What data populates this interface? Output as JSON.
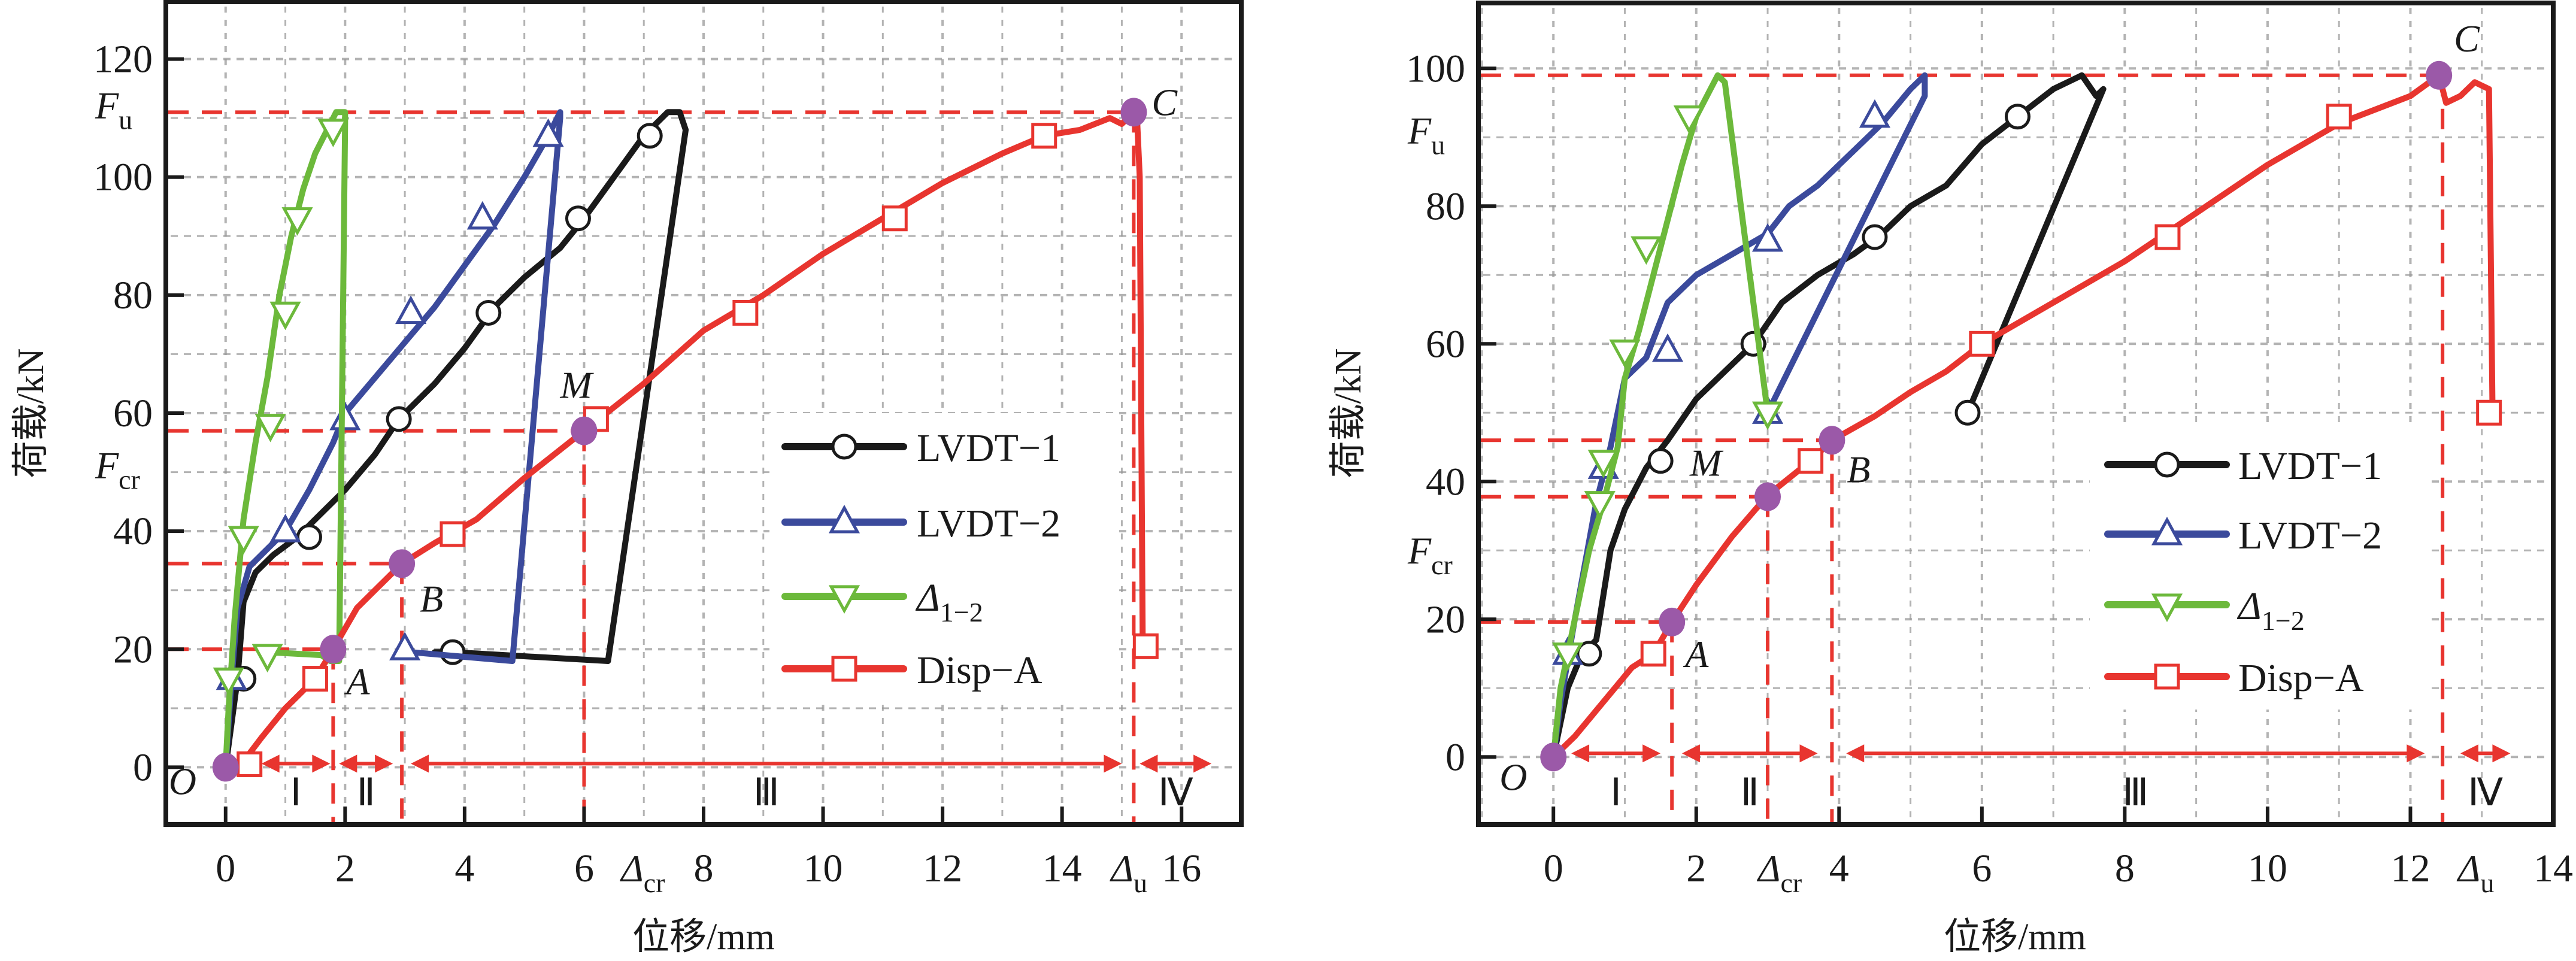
{
  "colors": {
    "LVDT-1": "#1a1a1a",
    "LVDT-2": "#3b4a9c",
    "delta12": "#6cb93b",
    "Disp-A": "#e8352f",
    "key_point": "#9b59a8",
    "grid": "#9a9a9a",
    "guide": "#e8352f"
  },
  "chart_data": [
    {
      "type": "line",
      "panel": "left",
      "xlabel": "位移/mm",
      "ylabel": "荷载/kN",
      "xlim": [
        -1.0,
        17.0
      ],
      "ylim": [
        -9.7,
        129.7
      ],
      "grid": true,
      "xticks": [
        {
          "value": 0,
          "label": "0"
        },
        {
          "value": 2,
          "label": "2"
        },
        {
          "value": 4,
          "label": "4"
        },
        {
          "value": 6,
          "label": "6"
        },
        {
          "value": 8,
          "label": "8"
        },
        {
          "value": 10,
          "label": "10"
        },
        {
          "value": 12,
          "label": "12"
        },
        {
          "value": 14,
          "label": "14"
        },
        {
          "value": 16,
          "label": "16"
        }
      ],
      "yticks": [
        {
          "value": 0,
          "label": "0"
        },
        {
          "value": 20,
          "label": "20"
        },
        {
          "value": 40,
          "label": "40"
        },
        {
          "value": 60,
          "label": "60"
        },
        {
          "value": 80,
          "label": "80"
        },
        {
          "value": 100,
          "label": "100"
        },
        {
          "value": 120,
          "label": "120"
        }
      ],
      "special_yticks": [
        {
          "value": 111,
          "base": "F",
          "sub": "u"
        },
        {
          "value": 50,
          "base": "F",
          "sub": "cr"
        }
      ],
      "special_xticks": [
        {
          "value": 6.9,
          "base": "Δ",
          "sub": "cr"
        },
        {
          "value": 15.1,
          "base": "Δ",
          "sub": "u"
        }
      ],
      "legend": {
        "placement": "center-right",
        "entries": [
          "LVDT-1",
          "LVDT-2",
          "Δ1−2",
          "Disp-A"
        ]
      },
      "legend_items": [
        {
          "key": "LVDT-1",
          "label": "LVDT−1",
          "marker": "circle"
        },
        {
          "key": "LVDT-2",
          "label": "LVDT−2",
          "marker": "triangle-up"
        },
        {
          "key": "delta12",
          "label": "Δ",
          "sub": "1−2",
          "marker": "triangle-down"
        },
        {
          "key": "Disp-A",
          "label": "Disp−A",
          "marker": "square"
        }
      ],
      "series": [
        {
          "name": "LVDT-1",
          "key": "LVDT-1",
          "marker": "circle",
          "x": [
            0,
            0.2,
            0.3,
            0.5,
            0.8,
            1.2,
            1.5,
            2.0,
            2.5,
            2.9,
            3.5,
            4.0,
            4.5,
            5.0,
            5.6,
            6.0,
            6.5,
            7.0,
            7.4,
            7.6,
            7.7,
            6.4,
            3.8,
            3.5
          ],
          "y": [
            0,
            15,
            28,
            33,
            36,
            39,
            42,
            47,
            53,
            59,
            65,
            71,
            78,
            83,
            88,
            93,
            100,
            107,
            111,
            111,
            108,
            18,
            19.5,
            19.5
          ],
          "markers_x": [
            0.3,
            1.4,
            2.9,
            4.4,
            5.9,
            7.1,
            3.8
          ],
          "markers_y": [
            15,
            39,
            59,
            77,
            93,
            107,
            19.5
          ]
        },
        {
          "name": "LVDT-2",
          "key": "LVDT-2",
          "marker": "triangle-up",
          "x": [
            0,
            0.1,
            0.2,
            0.4,
            0.7,
            1.0,
            1.4,
            1.8,
            2.0,
            2.5,
            3.0,
            3.5,
            4.0,
            4.5,
            5.0,
            5.4,
            5.6,
            5.6,
            4.8,
            3.1,
            3.0
          ],
          "y": [
            0,
            15,
            27,
            34,
            37,
            40,
            47,
            55,
            60,
            66,
            72,
            78,
            85,
            92,
            100,
            107,
            111,
            110,
            18,
            19.5,
            19.5
          ],
          "markers_x": [
            0.1,
            1.0,
            2.0,
            3.1,
            4.3,
            5.4,
            3.0
          ],
          "markers_y": [
            15,
            40,
            59,
            77,
            93,
            107,
            20
          ]
        },
        {
          "name": "Δ1−2",
          "key": "delta12",
          "marker": "triangle-down",
          "x": [
            0,
            0.05,
            0.15,
            0.3,
            0.5,
            0.7,
            0.9,
            1.1,
            1.3,
            1.5,
            1.7,
            1.85,
            2.0,
            2.0,
            1.9,
            1.75,
            1.6,
            0.7
          ],
          "y": [
            0,
            10,
            25,
            42,
            55,
            66,
            80,
            90,
            98,
            104,
            108,
            111,
            111,
            109,
            18,
            18,
            19,
            19.5
          ],
          "markers_x": [
            0.05,
            0.3,
            0.75,
            1.0,
            1.2,
            1.8,
            0.7
          ],
          "markers_y": [
            15,
            39,
            58,
            77,
            93,
            108,
            19
          ]
        },
        {
          "name": "Disp-A",
          "key": "Disp-A",
          "marker": "square",
          "x": [
            0,
            0.3,
            0.6,
            1.0,
            1.5,
            1.8,
            2.2,
            2.6,
            2.95,
            3.5,
            4.2,
            5.0,
            6.0,
            7.0,
            8.0,
            9.0,
            10.0,
            11.0,
            12.0,
            13.0,
            13.7,
            14.3,
            14.8,
            15.0,
            15.2,
            15.25,
            15.3,
            15.35
          ],
          "y": [
            0,
            1,
            5,
            10,
            15,
            20,
            27,
            31,
            34.5,
            38,
            42,
            49,
            57,
            65,
            74,
            80,
            87,
            93,
            99,
            104,
            107,
            108,
            110,
            109,
            111,
            111,
            100,
            20
          ],
          "markers_x": [
            0.4,
            1.5,
            3.8,
            6.2,
            8.7,
            11.2,
            13.7,
            15.4
          ],
          "markers_y": [
            0.5,
            15,
            39.5,
            59,
            77,
            93,
            107,
            20.5
          ]
        }
      ],
      "key_points": [
        {
          "label": "O",
          "x": 0,
          "y": 0
        },
        {
          "label": "A",
          "x": 1.8,
          "y": 20
        },
        {
          "label": "B",
          "x": 2.95,
          "y": 34.5
        },
        {
          "label": "M",
          "x": 6.0,
          "y": 57
        },
        {
          "label": "C",
          "x": 15.2,
          "y": 111
        }
      ],
      "guides": [
        {
          "hline": 111,
          "to_x": 15.2
        },
        {
          "hline": 57,
          "to_x": 6.0
        },
        {
          "hline": 34.5,
          "to_x": 2.95
        },
        {
          "hline": 20,
          "to_x": 1.8
        },
        {
          "vline": 1.8,
          "from_y": 20
        },
        {
          "vline": 2.95,
          "from_y": 34.5
        },
        {
          "vline": 6.0,
          "from_y": 57
        },
        {
          "vline": 15.2,
          "from_y": 111
        }
      ],
      "stages": [
        {
          "label": "Ⅰ",
          "from": 0.6,
          "to": 1.75
        },
        {
          "label": "Ⅱ",
          "from": 1.9,
          "to": 2.8
        },
        {
          "label": "Ⅲ",
          "from": 3.1,
          "to": 15.0
        },
        {
          "label": "Ⅳ",
          "from": 15.3,
          "to": 16.5
        }
      ]
    },
    {
      "type": "line",
      "panel": "right",
      "xlabel": "位移/mm",
      "ylabel": "荷载/kN",
      "xlim": [
        -1.05,
        14.0
      ],
      "ylim": [
        -9.8,
        109.5
      ],
      "grid": true,
      "xticks": [
        {
          "value": 0,
          "label": "0"
        },
        {
          "value": 2,
          "label": "2"
        },
        {
          "value": 4,
          "label": "4"
        },
        {
          "value": 6,
          "label": "6"
        },
        {
          "value": 8,
          "label": "8"
        },
        {
          "value": 10,
          "label": "10"
        },
        {
          "value": 12,
          "label": "12"
        },
        {
          "value": 14,
          "label": "14"
        }
      ],
      "yticks": [
        {
          "value": 0,
          "label": "0"
        },
        {
          "value": 20,
          "label": "20"
        },
        {
          "value": 40,
          "label": "40"
        },
        {
          "value": 60,
          "label": "60"
        },
        {
          "value": 80,
          "label": "80"
        },
        {
          "value": 100,
          "label": "100"
        }
      ],
      "special_yticks": [
        {
          "value": 90,
          "base": "F",
          "sub": "u"
        },
        {
          "value": 29,
          "base": "F",
          "sub": "cr"
        }
      ],
      "special_xticks": [
        {
          "value": 3.1,
          "base": "Δ",
          "sub": "cr"
        },
        {
          "value": 12.9,
          "base": "Δ",
          "sub": "u"
        }
      ],
      "legend": {
        "placement": "center-right",
        "entries": [
          "LVDT-1",
          "LVDT-2",
          "Δ1−2",
          "Disp-A"
        ]
      },
      "legend_items": [
        {
          "key": "LVDT-1",
          "label": "LVDT−1",
          "marker": "circle"
        },
        {
          "key": "LVDT-2",
          "label": "LVDT−2",
          "marker": "triangle-up"
        },
        {
          "key": "delta12",
          "label": "Δ",
          "sub": "1−2",
          "marker": "triangle-down"
        },
        {
          "key": "Disp-A",
          "label": "Disp−A",
          "marker": "square"
        }
      ],
      "series": [
        {
          "name": "LVDT-1",
          "key": "LVDT-1",
          "marker": "circle",
          "x": [
            0,
            0.2,
            0.4,
            0.6,
            0.8,
            1.0,
            1.3,
            1.6,
            2.0,
            2.4,
            2.8,
            3.2,
            3.7,
            4.2,
            4.6,
            5.0,
            5.5,
            6.0,
            6.5,
            7.0,
            7.4,
            7.6,
            7.7,
            5.8
          ],
          "y": [
            0,
            10,
            15,
            17,
            30,
            36,
            42,
            46,
            52,
            56,
            60,
            66,
            70,
            73,
            76,
            80,
            83,
            89,
            93,
            97,
            99,
            96,
            97,
            50
          ],
          "markers_x": [
            0.5,
            1.5,
            2.8,
            4.5,
            6.5,
            5.8
          ],
          "markers_y": [
            15,
            43,
            60,
            75.5,
            93,
            50
          ]
        },
        {
          "name": "LVDT-2",
          "key": "LVDT-2",
          "marker": "triangle-up",
          "x": [
            0,
            0.1,
            0.3,
            0.6,
            0.8,
            1.0,
            1.3,
            1.6,
            2.0,
            2.5,
            3.0,
            3.3,
            3.7,
            4.2,
            4.6,
            5.0,
            5.2,
            5.2,
            3.0
          ],
          "y": [
            0,
            8,
            20,
            37,
            45,
            55,
            58,
            66,
            70,
            73,
            76,
            80,
            83,
            88,
            92,
            97,
            99,
            96,
            50
          ],
          "markers_x": [
            0.2,
            0.7,
            1.6,
            3.0,
            4.5,
            3.0
          ],
          "markers_y": [
            15,
            42,
            59,
            75,
            93,
            50
          ]
        },
        {
          "name": "Δ1−2",
          "key": "delta12",
          "marker": "triangle-down",
          "x": [
            0,
            0.1,
            0.3,
            0.5,
            0.7,
            0.9,
            1.0,
            1.2,
            1.4,
            1.6,
            1.8,
            2.0,
            2.2,
            2.3,
            2.4,
            3.0
          ],
          "y": [
            0,
            10,
            20,
            30,
            37,
            45,
            55,
            62,
            70,
            78,
            86,
            93,
            97,
            99,
            98,
            50
          ],
          "markers_x": [
            0.2,
            0.65,
            0.7,
            1.0,
            1.3,
            1.9,
            3.0
          ],
          "markers_y": [
            15,
            37,
            43,
            59,
            74,
            93,
            50
          ]
        },
        {
          "name": "Disp-A",
          "key": "Disp-A",
          "marker": "square",
          "x": [
            0,
            0.3,
            0.7,
            1.1,
            1.4,
            1.66,
            2.0,
            2.5,
            3.0,
            3.6,
            3.9,
            4.5,
            5.0,
            5.5,
            6.0,
            7.0,
            8.0,
            9.0,
            10.0,
            11.0,
            11.5,
            12.0,
            12.4,
            12.5,
            12.7,
            12.9,
            13.1,
            13.15
          ],
          "y": [
            0,
            3,
            8,
            13,
            15,
            19.6,
            25,
            32,
            38,
            43,
            46,
            49.5,
            53,
            56,
            60,
            66,
            72,
            79,
            86,
            92,
            94,
            96,
            99,
            95,
            96,
            98,
            97,
            50
          ],
          "markers_x": [
            1.4,
            3.6,
            6.0,
            8.6,
            11.0,
            13.1
          ],
          "markers_y": [
            15,
            43,
            60,
            75.5,
            93,
            50
          ]
        }
      ],
      "key_points": [
        {
          "label": "O",
          "x": 0,
          "y": 0
        },
        {
          "label": "A",
          "x": 1.66,
          "y": 19.6
        },
        {
          "label": "M",
          "x": 3.0,
          "y": 37.8
        },
        {
          "label": "B",
          "x": 3.9,
          "y": 46
        },
        {
          "label": "C",
          "x": 12.4,
          "y": 99
        }
      ],
      "guides": [
        {
          "hline": 99,
          "to_x": 12.4
        },
        {
          "hline": 46,
          "to_x": 3.9
        },
        {
          "hline": 37.8,
          "to_x": 3.0
        },
        {
          "hline": 19.6,
          "to_x": 1.66
        },
        {
          "vline": 1.66,
          "from_y": 19.6
        },
        {
          "vline": 3.0,
          "from_y": 37.8
        },
        {
          "vline": 3.9,
          "from_y": 46
        },
        {
          "vline": 12.45,
          "from_y": 99
        }
      ],
      "stages": [
        {
          "label": "Ⅰ",
          "from": 0.25,
          "to": 1.5
        },
        {
          "label": "Ⅱ",
          "from": 1.8,
          "to": 3.7
        },
        {
          "label": "Ⅲ",
          "from": 4.1,
          "to": 12.2
        },
        {
          "label": "Ⅳ",
          "from": 12.7,
          "to": 13.4
        }
      ]
    }
  ]
}
